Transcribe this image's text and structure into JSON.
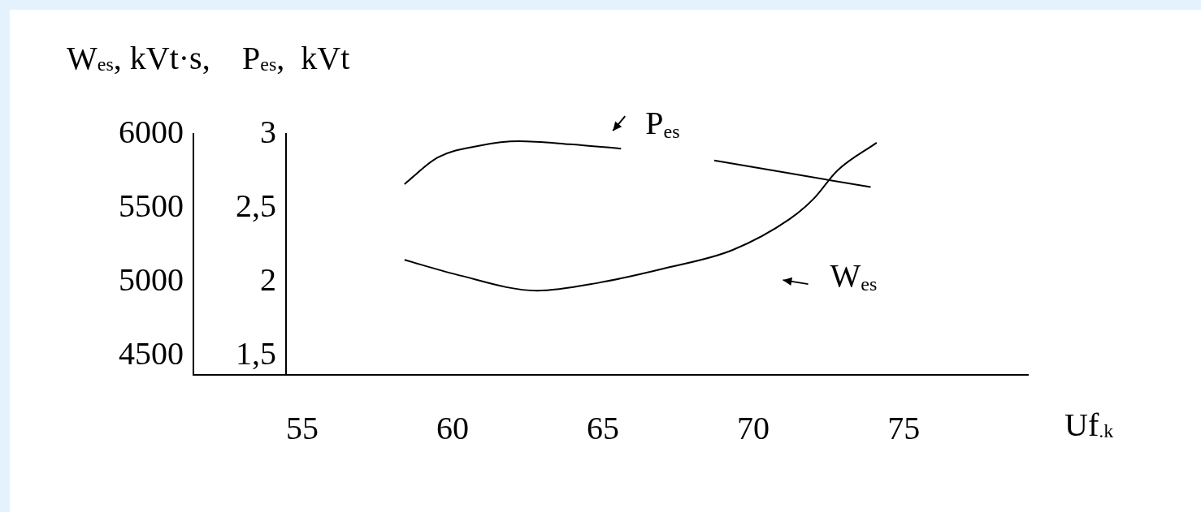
{
  "chart_data": {
    "type": "line",
    "ylabel": "W$_{es}$, kVt·s,",
    "y2label": "P$_{es}$,  kVt",
    "xlabel": "Uf$_{.k}$",
    "xlim": [
      54.46,
      79.13
    ],
    "xticks": [
      55,
      60,
      65,
      70,
      75
    ],
    "ylim": [
      4370,
      6000
    ],
    "yticks": [
      4500,
      5000,
      5500,
      6000
    ],
    "y2lim": [
      1.37,
      3
    ],
    "y2ticks": [
      {
        "value": 1.5,
        "label": "1,5"
      },
      {
        "value": 2,
        "label": "2"
      },
      {
        "value": 2.5,
        "label": "2,5"
      },
      {
        "value": 3,
        "label": "3"
      }
    ],
    "grid": false,
    "legend": "top right",
    "marker": "none",
    "line_style": "solid",
    "series": [
      {
        "name": "P$_{es}$",
        "color": "#000000",
        "axis": "y2",
        "x": [
          58.4,
          59.5,
          60.9,
          62.2,
          63.9,
          65.6,
          67.2,
          68.7,
          73.9
        ],
        "values": [
          2.66,
          2.84,
          2.92,
          2.95,
          2.93,
          2.9,
          null,
          2.82,
          2.64
        ]
      },
      {
        "name": "W$_{es}$",
        "color": "#000000",
        "x": [
          58.4,
          60.1,
          62.8,
          64.9,
          67.1,
          69.3,
          71.2,
          72.0,
          72.8,
          74.1
        ],
        "values": [
          5148,
          5050,
          4940,
          4995,
          5093,
          5214,
          5423,
          5560,
          5753,
          5940
        ]
      }
    ]
  }
}
